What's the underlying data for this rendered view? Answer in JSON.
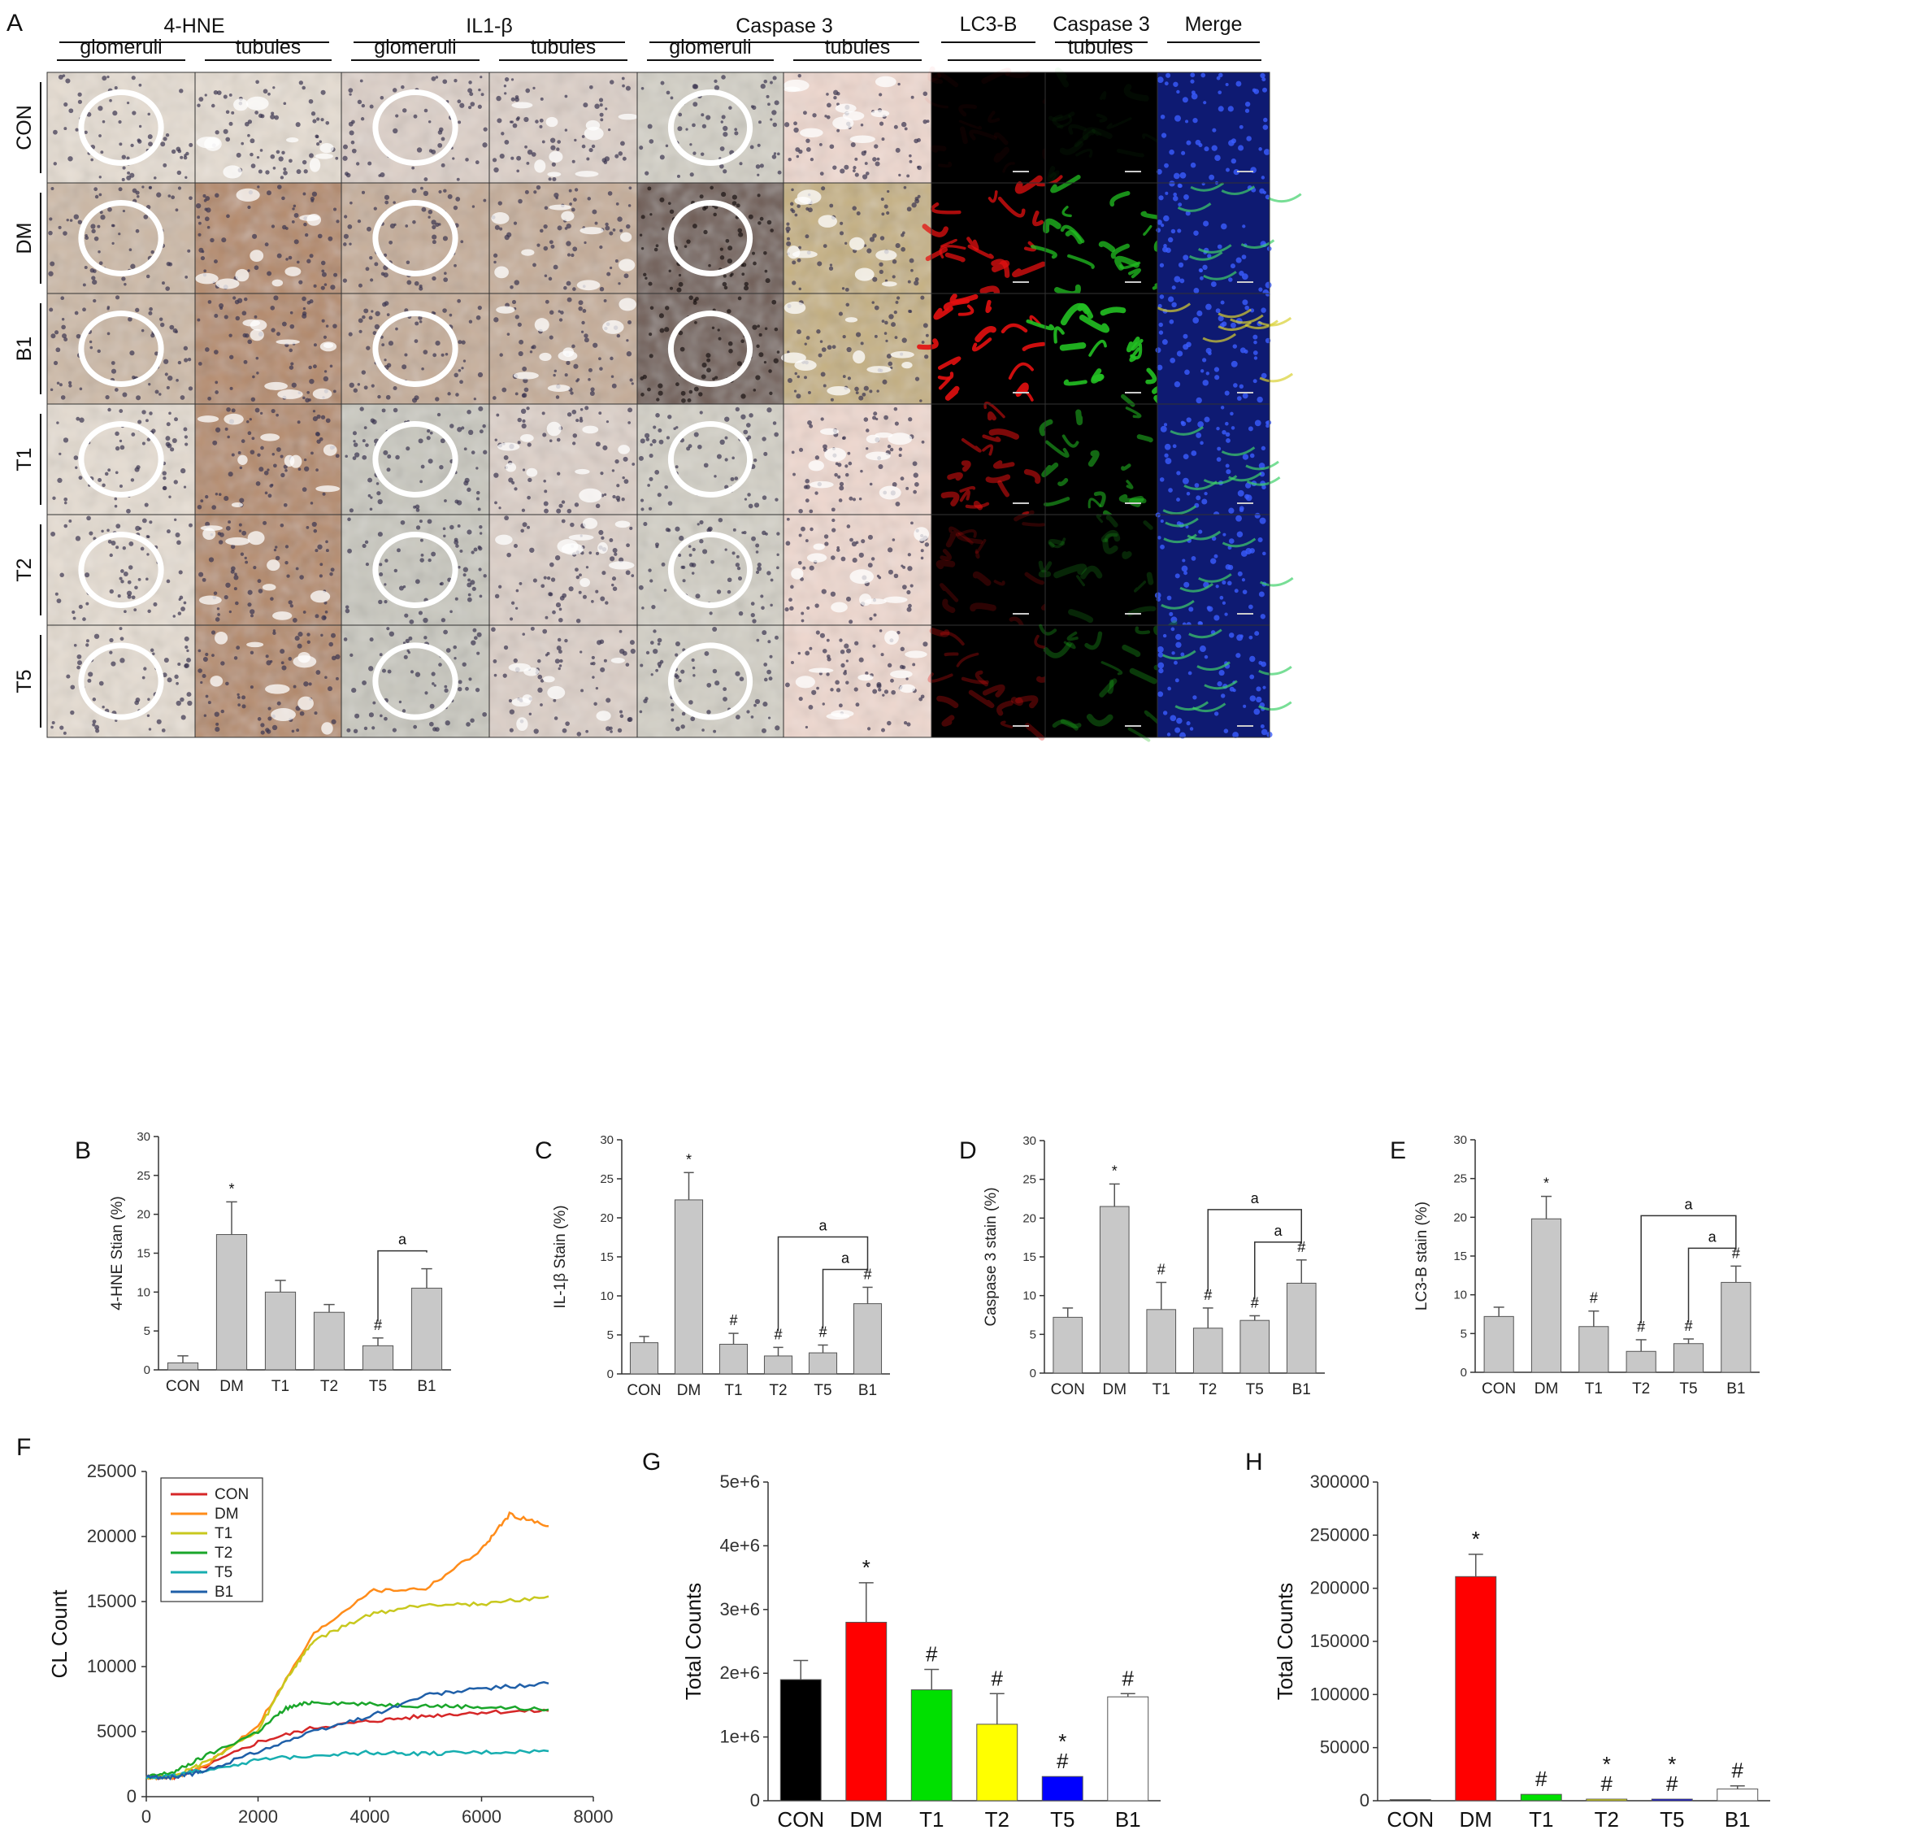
{
  "figure": {
    "panel_labels": [
      "A",
      "B",
      "C",
      "D",
      "E",
      "F",
      "G",
      "H"
    ],
    "micro": {
      "stains": [
        {
          "name": "4-HNE",
          "subs": [
            "glomeruli",
            "tubules"
          ]
        },
        {
          "name": "IL1-β",
          "subs": [
            "glomeruli",
            "tubules"
          ]
        },
        {
          "name": "Caspase 3",
          "subs": [
            "glomeruli",
            "tubules"
          ]
        }
      ],
      "fluor_heads": [
        "LC3-B",
        "Caspase 3",
        "Merge"
      ],
      "fluor_sub": "tubules",
      "rows": [
        "CON",
        "DM",
        "B1",
        "T1",
        "T2",
        "T5"
      ],
      "colors": {
        "ihc_light": "#e6ddd2",
        "ihc_brown": "#b58a6a",
        "ihc_dark": "#3a2b2a",
        "ihc_gray": "#c9c8bf",
        "fluor_red": "#e31010",
        "fluor_green": "#22c022",
        "fluor_blue": "#1a2fd0"
      }
    }
  },
  "chart_data": [
    {
      "id": "B",
      "type": "bar",
      "panel": "B",
      "categories": [
        "CON",
        "DM",
        "T1",
        "T2",
        "T5",
        "B1"
      ],
      "values": [
        0.9,
        17.4,
        10.0,
        7.4,
        3.1,
        10.5
      ],
      "errors": [
        0.9,
        4.2,
        1.5,
        1.0,
        1.0,
        2.5
      ],
      "ylabel": "4-HNE Stian (%)",
      "ylim": [
        0,
        30
      ],
      "yticks": [
        0,
        5,
        10,
        15,
        20,
        25,
        30
      ],
      "marks": [
        "",
        "*",
        "",
        "",
        "#",
        ""
      ],
      "brackets": [
        {
          "from": 4,
          "to": 5,
          "label": "a"
        }
      ],
      "bar_color": "#c8c8c8"
    },
    {
      "id": "C",
      "type": "bar",
      "panel": "C",
      "categories": [
        "CON",
        "DM",
        "T1",
        "T2",
        "T5",
        "B1"
      ],
      "values": [
        4.0,
        22.3,
        3.8,
        2.3,
        2.7,
        9.0
      ],
      "errors": [
        0.8,
        3.5,
        1.4,
        1.1,
        1.0,
        2.1
      ],
      "ylabel": "IL-1β Stain (%)",
      "ylim": [
        0,
        30
      ],
      "yticks": [
        0,
        5,
        10,
        15,
        20,
        25,
        30
      ],
      "marks": [
        "",
        "*",
        "#",
        "#",
        "#",
        "#"
      ],
      "brackets": [
        {
          "from": 3,
          "to": 5,
          "label": "a"
        },
        {
          "from": 4,
          "to": 5,
          "label": "a"
        }
      ],
      "bar_color": "#c8c8c8"
    },
    {
      "id": "D",
      "type": "bar",
      "panel": "D",
      "categories": [
        "CON",
        "DM",
        "T1",
        "T2",
        "T5",
        "B1"
      ],
      "values": [
        7.2,
        21.5,
        8.2,
        5.8,
        6.8,
        11.6
      ],
      "errors": [
        1.2,
        2.9,
        3.5,
        2.6,
        0.6,
        3.0
      ],
      "ylabel": "Caspase 3 stain (%)",
      "ylim": [
        0,
        30
      ],
      "yticks": [
        0,
        5,
        10,
        15,
        20,
        25,
        30
      ],
      "marks": [
        "",
        "*",
        "#",
        "#",
        "#",
        "#"
      ],
      "brackets": [
        {
          "from": 3,
          "to": 5,
          "label": "a"
        },
        {
          "from": 4,
          "to": 5,
          "label": "a"
        }
      ],
      "bar_color": "#c8c8c8"
    },
    {
      "id": "E",
      "type": "bar",
      "panel": "E",
      "categories": [
        "CON",
        "DM",
        "T1",
        "T2",
        "T5",
        "B1"
      ],
      "values": [
        7.2,
        19.8,
        5.9,
        2.7,
        3.7,
        11.6
      ],
      "errors": [
        1.2,
        2.9,
        2.0,
        1.5,
        0.6,
        2.1
      ],
      "ylabel": "LC3-B  stain (%)",
      "ylim": [
        0,
        30
      ],
      "yticks": [
        0,
        5,
        10,
        15,
        20,
        25,
        30
      ],
      "marks": [
        "",
        "*",
        "#",
        "#",
        "#",
        "#"
      ],
      "brackets": [
        {
          "from": 3,
          "to": 5,
          "label": "a"
        },
        {
          "from": 4,
          "to": 5,
          "label": "a"
        }
      ],
      "bar_color": "#c8c8c8"
    },
    {
      "id": "F",
      "type": "line",
      "panel": "F",
      "ylabel": "CL Count",
      "xlim": [
        0,
        8000
      ],
      "ylim": [
        0,
        25000
      ],
      "xticks": [
        0,
        2000,
        4000,
        6000,
        8000
      ],
      "yticks": [
        0,
        5000,
        10000,
        15000,
        20000,
        25000
      ],
      "legend_position": "top-left",
      "series": [
        {
          "name": "CON",
          "color": "#d62728",
          "x": [
            0,
            500,
            1000,
            2000,
            3000,
            4000,
            5000,
            6000,
            7200
          ],
          "y": [
            1500,
            1500,
            2200,
            4200,
            5300,
            5800,
            6200,
            6500,
            6600
          ]
        },
        {
          "name": "DM",
          "color": "#ff8c1a",
          "x": [
            0,
            500,
            1000,
            2000,
            3000,
            4000,
            5000,
            6000,
            6500,
            7200
          ],
          "y": [
            1500,
            1500,
            2200,
            5500,
            12500,
            15800,
            16000,
            19000,
            21700,
            20800
          ]
        },
        {
          "name": "T1",
          "color": "#c8c81e",
          "x": [
            0,
            500,
            1000,
            2000,
            2500,
            3000,
            4000,
            5000,
            6000,
            7200
          ],
          "y": [
            1500,
            1600,
            2500,
            5000,
            9000,
            12000,
            14000,
            14800,
            14800,
            15400
          ]
        },
        {
          "name": "T2",
          "color": "#1aa62a",
          "x": [
            0,
            500,
            1000,
            2000,
            2500,
            3000,
            4000,
            5000,
            6000,
            7200
          ],
          "y": [
            1500,
            1900,
            3000,
            5000,
            6800,
            7300,
            7100,
            7000,
            6900,
            6700
          ]
        },
        {
          "name": "T5",
          "color": "#17aeb0",
          "x": [
            0,
            500,
            1000,
            2000,
            3000,
            4000,
            5000,
            6000,
            7200
          ],
          "y": [
            1500,
            1600,
            2000,
            2800,
            3200,
            3400,
            3300,
            3400,
            3500
          ]
        },
        {
          "name": "B1",
          "color": "#1f5fa8",
          "x": [
            0,
            500,
            1000,
            2000,
            3000,
            4000,
            5000,
            6000,
            7200
          ],
          "y": [
            1500,
            1500,
            1900,
            3500,
            5000,
            6200,
            7800,
            8300,
            8700
          ]
        }
      ]
    },
    {
      "id": "G",
      "type": "bar",
      "panel": "G",
      "categories": [
        "CON",
        "DM",
        "T1",
        "T2",
        "T5",
        "B1"
      ],
      "values": [
        1900000,
        2800000,
        1740000,
        1200000,
        380000,
        1630000
      ],
      "errors": [
        300000,
        620000,
        320000,
        480000,
        0,
        50000
      ],
      "ylabel": "Total Counts",
      "ylim": [
        0,
        5000000
      ],
      "yticks": [
        0,
        1000000,
        2000000,
        3000000,
        4000000,
        5000000
      ],
      "ytick_labels": [
        "0",
        "1e+6",
        "2e+6",
        "3e+6",
        "4e+6",
        "5e+6"
      ],
      "marks": [
        "",
        "*",
        "#",
        "#",
        "*\n#",
        "#"
      ],
      "colors": [
        "#000000",
        "#ff0000",
        "#00e000",
        "#ffff00",
        "#0000ff",
        "#ffffff"
      ]
    },
    {
      "id": "H",
      "type": "bar",
      "panel": "H",
      "categories": [
        "CON",
        "DM",
        "T1",
        "T2",
        "T5",
        "B1"
      ],
      "values": [
        1000,
        211000,
        6000,
        1500,
        1500,
        11000
      ],
      "errors": [
        0,
        21000,
        0,
        0,
        0,
        3000
      ],
      "ylabel": "Total Counts",
      "ylim": [
        0,
        300000
      ],
      "yticks": [
        0,
        50000,
        100000,
        150000,
        200000,
        250000,
        300000
      ],
      "ytick_labels": [
        "0",
        "50000",
        "100000",
        "150000",
        "200000",
        "250000",
        "300000"
      ],
      "marks": [
        "",
        "*",
        "#",
        "*\n#",
        "*\n#",
        "#"
      ],
      "colors": [
        "#000000",
        "#ff0000",
        "#00e000",
        "#ffff00",
        "#0000ff",
        "#ffffff"
      ]
    }
  ]
}
